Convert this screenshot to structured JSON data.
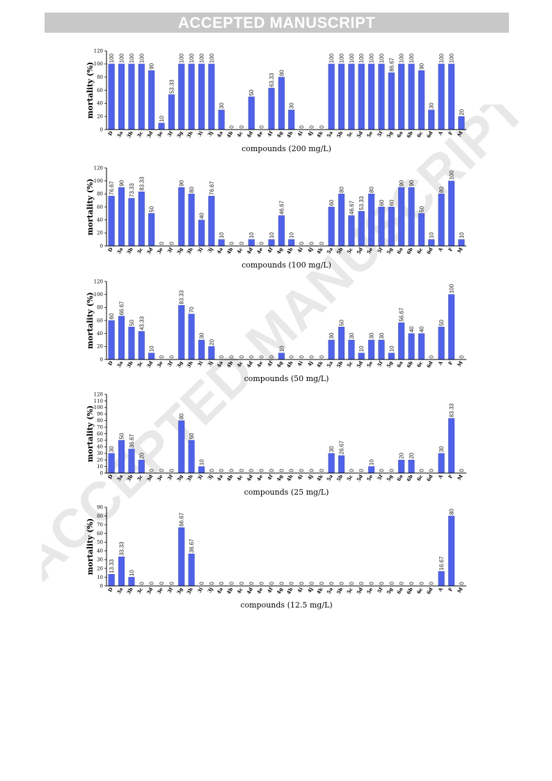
{
  "banner": {
    "text": "ACCEPTED MANUSCRIPT"
  },
  "watermark": {
    "text": "ACCEPTED MANUSCRIPT"
  },
  "colors": {
    "bar": "#4f62e8",
    "bar_edge": "#2a37a8",
    "axis": "#000000",
    "banner_bg": "#c8c8c8",
    "banner_text": "#ffffff"
  },
  "chart_data": [
    {
      "type": "bar",
      "xlabel": "compounds (200 mg/L)",
      "ylabel": "mortality (%)",
      "ylim": [
        0,
        120
      ],
      "yticks": [
        0,
        20,
        40,
        60,
        80,
        100,
        120
      ],
      "categories": [
        "D",
        "3a",
        "3b",
        "3c",
        "3d",
        "3e",
        "3f",
        "3g",
        "3h",
        "3i",
        "3j",
        "4a",
        "4b",
        "4c",
        "4d",
        "4e",
        "4f",
        "4g",
        "4h",
        "4i",
        "4j",
        "4k",
        "5a",
        "5b",
        "5c",
        "5d",
        "5e",
        "5f",
        "5g",
        "6a",
        "6b",
        "6c",
        "6d",
        "A",
        "F",
        "M"
      ],
      "values": [
        100,
        100,
        100,
        100,
        90,
        10,
        53.33,
        100,
        100,
        100,
        100,
        30,
        0,
        0,
        50,
        0,
        63.33,
        80,
        30,
        0,
        0,
        0,
        100,
        100,
        100,
        100,
        100,
        100,
        86.67,
        100,
        100,
        90,
        30,
        100,
        100,
        20
      ],
      "labels": [
        "100",
        "100",
        "100",
        "100",
        "90",
        "10",
        "53.33",
        "100",
        "100",
        "100",
        "100",
        "30",
        "0",
        "0",
        "50",
        "0",
        "63.33",
        "80",
        "30",
        "0",
        "0",
        "0",
        "100",
        "100",
        "100",
        "100",
        "100",
        "100",
        "86.67",
        "100",
        "100",
        "90",
        "30",
        "100",
        "100",
        "20"
      ]
    },
    {
      "type": "bar",
      "xlabel": "compounds (100 mg/L)",
      "ylabel": "mortality (%)",
      "ylim": [
        0,
        120
      ],
      "yticks": [
        0,
        20,
        40,
        60,
        80,
        100,
        120
      ],
      "categories": [
        "D",
        "3a",
        "3b",
        "3c",
        "3d",
        "3e",
        "3f",
        "3g",
        "3h",
        "3i",
        "3j",
        "4a",
        "4b",
        "4c",
        "4d",
        "4e",
        "4f",
        "4g",
        "4h",
        "4i",
        "4j",
        "4k",
        "5a",
        "5b",
        "5c",
        "5d",
        "5e",
        "5f",
        "5g",
        "6a",
        "6b",
        "6c",
        "6d",
        "A",
        "F",
        "M"
      ],
      "values": [
        76.67,
        90,
        73.33,
        83.33,
        50,
        0,
        0,
        90,
        80,
        40,
        76.67,
        10,
        0,
        0,
        10,
        0,
        10,
        46.67,
        10,
        0,
        0,
        0,
        60,
        80,
        46.67,
        53.33,
        80,
        60,
        60,
        90,
        90,
        50,
        10,
        80,
        100,
        10
      ],
      "labels": [
        "76.67",
        "90",
        "73.33",
        "83.33",
        "50",
        "0",
        "0",
        "90",
        "80",
        "40",
        "76.67",
        "10",
        "0",
        "0",
        "10",
        "0",
        "10",
        "46.67",
        "10",
        "0",
        "0",
        "0",
        "60",
        "80",
        "46.67",
        "53.33",
        "80",
        "60",
        "60",
        "90",
        "90",
        "50",
        "10",
        "80",
        "100",
        "10"
      ]
    },
    {
      "type": "bar",
      "xlabel": "compounds (50 mg/L)",
      "ylabel": "mortality (%)",
      "ylim": [
        0,
        120
      ],
      "yticks": [
        0,
        20,
        40,
        60,
        80,
        100,
        120
      ],
      "categories": [
        "D",
        "3a",
        "3b",
        "3c",
        "3d",
        "3e",
        "3f",
        "3g",
        "3h",
        "3i",
        "3j",
        "4a",
        "4b",
        "4c",
        "4d",
        "4e",
        "4f",
        "4g",
        "4h",
        "4i",
        "4j",
        "4k",
        "5a",
        "5b",
        "5c",
        "5d",
        "5e",
        "5f",
        "5g",
        "6a",
        "6b",
        "6c",
        "6d",
        "A",
        "F",
        "M"
      ],
      "values": [
        60,
        66.67,
        50,
        43.33,
        10,
        0,
        0,
        83.33,
        70,
        30,
        20,
        0,
        0,
        0,
        0,
        0,
        0,
        10,
        0,
        0,
        0,
        0,
        30,
        50,
        30,
        10,
        30,
        30,
        10,
        56.67,
        40,
        40,
        0,
        50,
        100,
        0
      ],
      "labels": [
        "60",
        "66.67",
        "50",
        "43.33",
        "10",
        "0",
        "0",
        "83.33",
        "70",
        "30",
        "20",
        "0",
        "0",
        "0",
        "0",
        "0",
        "0",
        "10",
        "0",
        "0",
        "0",
        "0",
        "30",
        "50",
        "30",
        "10",
        "30",
        "30",
        "10",
        "56.67",
        "40",
        "40",
        "0",
        "50",
        "100",
        "0"
      ]
    },
    {
      "type": "bar",
      "xlabel": "compounds (25 mg/L)",
      "ylabel": "mortality (%)",
      "ylim": [
        0,
        120
      ],
      "yticks": [
        0,
        10,
        20,
        30,
        40,
        50,
        60,
        70,
        80,
        90,
        100,
        110,
        120
      ],
      "categories": [
        "D",
        "3a",
        "3b",
        "3c",
        "3d",
        "3e",
        "3f",
        "3g",
        "3h",
        "3i",
        "3j",
        "4a",
        "4b",
        "4c",
        "4d",
        "4e",
        "4f",
        "4g",
        "4h",
        "4i",
        "4j",
        "4k",
        "5a",
        "5b",
        "5c",
        "5d",
        "5e",
        "5f",
        "5g",
        "6a",
        "6b",
        "6c",
        "6d",
        "A",
        "F",
        "M"
      ],
      "values": [
        30,
        50,
        36.67,
        20,
        0,
        0,
        0,
        80,
        50,
        10,
        0,
        0,
        0,
        0,
        0,
        0,
        0,
        0,
        0,
        0,
        0,
        0,
        30,
        26.67,
        0,
        0,
        10,
        0,
        0,
        20,
        20,
        0,
        0,
        30,
        83.33,
        0
      ],
      "labels": [
        "30",
        "50",
        "36.67",
        "20",
        "0",
        "0",
        "0",
        "80",
        "50",
        "10",
        "0",
        "0",
        "0",
        "0",
        "0",
        "0",
        "0",
        "0",
        "0",
        "0",
        "0",
        "0",
        "30",
        "26.67",
        "0",
        "0",
        "10",
        "0",
        "0",
        "20",
        "20",
        "0",
        "0",
        "30",
        "83.33",
        "0"
      ]
    },
    {
      "type": "bar",
      "xlabel": "compounds (12.5 mg/L)",
      "ylabel": "mortality (%)",
      "ylim": [
        0,
        90
      ],
      "yticks": [
        0,
        10,
        20,
        30,
        40,
        50,
        60,
        70,
        80,
        90
      ],
      "categories": [
        "D",
        "3a",
        "3b",
        "3c",
        "3d",
        "3e",
        "3f",
        "3g",
        "3h",
        "3i",
        "3j",
        "4a",
        "4b",
        "4c",
        "4d",
        "4e",
        "4f",
        "4g",
        "4h",
        "4i",
        "4j",
        "4k",
        "5a",
        "5b",
        "5c",
        "5d",
        "5e",
        "5f",
        "5g",
        "6a",
        "6b",
        "6c",
        "6d",
        "A",
        "F",
        "M"
      ],
      "values": [
        13.33,
        33.33,
        10,
        0,
        0,
        0,
        0,
        66.67,
        36.67,
        0,
        0,
        0,
        0,
        0,
        0,
        0,
        0,
        0,
        0,
        0,
        0,
        0,
        0,
        0,
        0,
        0,
        0,
        0,
        0,
        0,
        0,
        0,
        0,
        16.67,
        80,
        0
      ],
      "labels": [
        "13.33",
        "33.33",
        "10",
        "0",
        "0",
        "0",
        "0",
        "66.67",
        "36.67",
        "0",
        "0",
        "0",
        "0",
        "0",
        "0",
        "0",
        "0",
        "0",
        "0",
        "0",
        "0",
        "0",
        "0",
        "0",
        "0",
        "0",
        "0",
        "0",
        "0",
        "0",
        "0",
        "0",
        "0",
        "16.67",
        "80",
        "0"
      ]
    }
  ]
}
